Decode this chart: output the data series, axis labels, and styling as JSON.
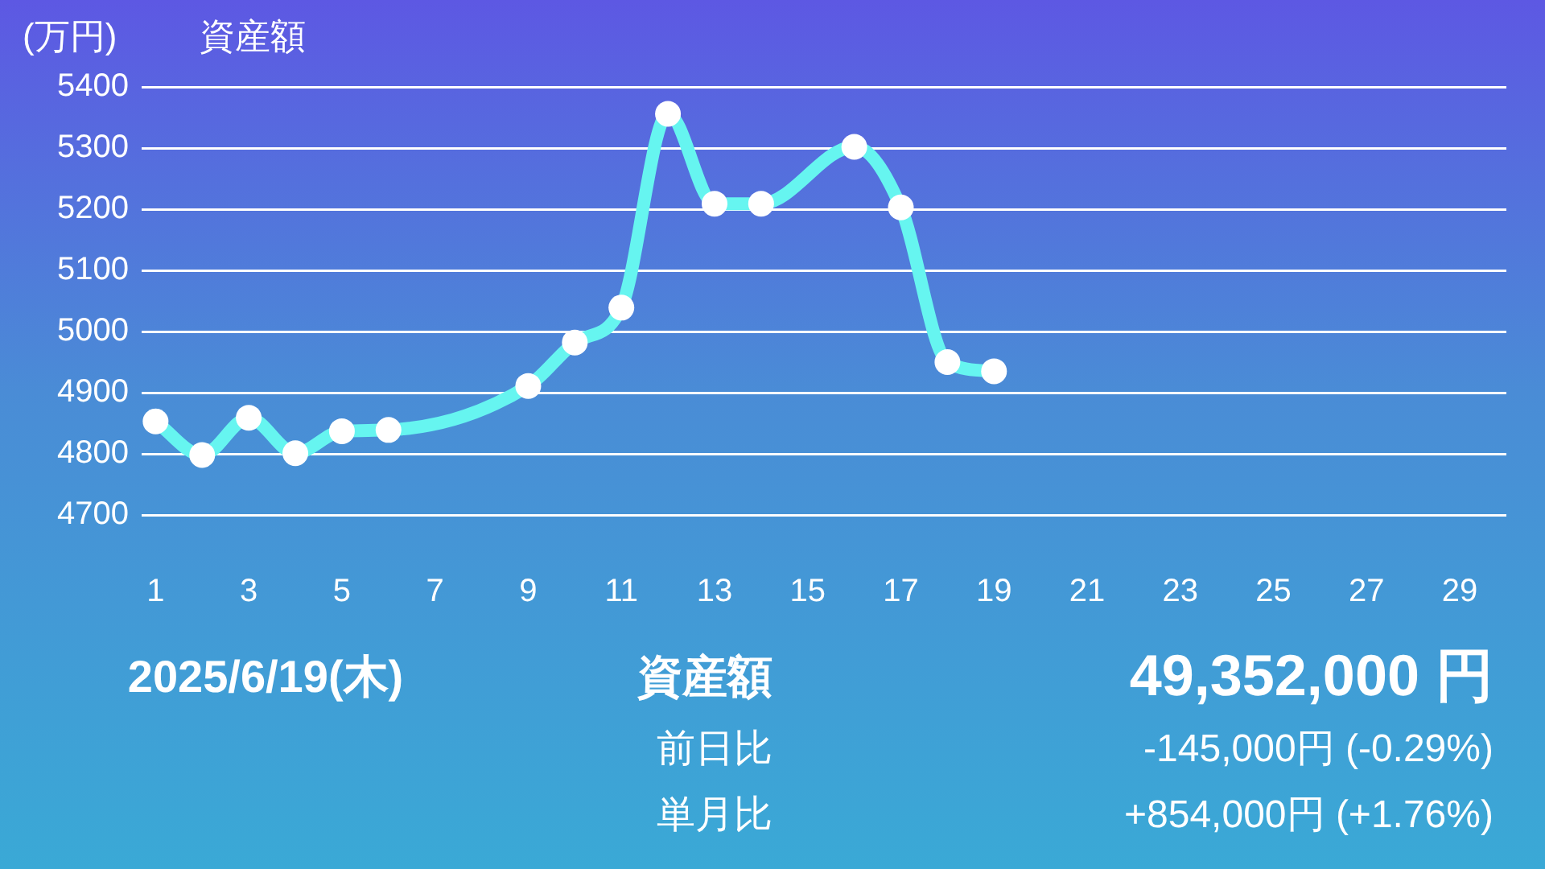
{
  "chart_data": {
    "type": "line",
    "title": "資産額",
    "ylabel": "(万円)",
    "xlim": [
      0.7,
      30
    ],
    "xticks": [
      1,
      3,
      5,
      7,
      9,
      11,
      13,
      15,
      17,
      19,
      21,
      23,
      25,
      27,
      29
    ],
    "ylim": [
      4700,
      5400
    ],
    "yticks": [
      4700,
      4800,
      4900,
      5000,
      5100,
      5200,
      5300,
      5400
    ],
    "grid": "y",
    "legend": false,
    "marker": "circle",
    "line_style": "solid",
    "series": [
      {
        "color": "#66f5f0",
        "x": [
          1,
          2,
          3,
          4,
          5,
          6,
          9,
          10,
          11,
          12,
          13,
          14,
          16,
          17,
          18,
          19
        ],
        "values": [
          4853,
          4798,
          4859,
          4801,
          4837,
          4839,
          4911,
          4982,
          5039,
          5356,
          5209,
          5209,
          5302,
          5203,
          4950,
          4935
        ]
      }
    ],
    "annotations": [
      "2025/6/19(木)",
      "資産額",
      "49,352,000 円",
      "前日比",
      "-145,000円 (-0.29%)",
      "単月比",
      "+854,000円 (+1.76%)"
    ]
  }
}
